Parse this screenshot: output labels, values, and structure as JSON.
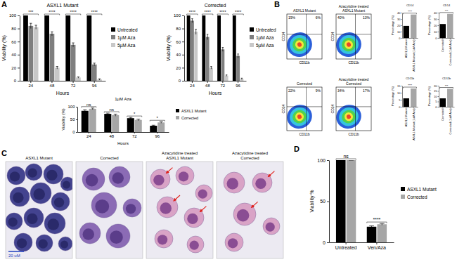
{
  "panel_labels": [
    "A",
    "B",
    "C",
    "D"
  ],
  "chart_data": [
    {
      "type": "bar",
      "title": "ASXL1 Mutant",
      "xlabel": "Hours",
      "ylabel": "Viability (%)",
      "categories": [
        "24",
        "48",
        "72",
        "96"
      ],
      "series": [
        {
          "name": "Untreated",
          "color": "#000000",
          "values": [
            100,
            100,
            100,
            100
          ],
          "errors": [
            0,
            0,
            0,
            0
          ]
        },
        {
          "name": "1µM Aza",
          "color": "#7f7f7f",
          "values": [
            84,
            72,
            55,
            25
          ],
          "errors": [
            4,
            3,
            3,
            2
          ]
        },
        {
          "name": "5µM Aza",
          "color": "#c8c8c8",
          "values": [
            82,
            20,
            5,
            2
          ],
          "errors": [
            3,
            2,
            1,
            1
          ]
        }
      ],
      "ylim": [
        0,
        100
      ],
      "yticks": [
        0,
        20,
        40,
        60,
        80,
        100
      ],
      "legend": "right",
      "annotations": [
        {
          "text": "***",
          "category": "24"
        },
        {
          "text": "****",
          "category": "48"
        },
        {
          "text": "****",
          "category": "72"
        },
        {
          "text": "****",
          "category": "96"
        }
      ]
    },
    {
      "type": "bar",
      "title": "Corrected",
      "xlabel": "Hours",
      "ylabel": "Viability (%)",
      "categories": [
        "24",
        "48",
        "72",
        "96"
      ],
      "series": [
        {
          "name": "Untreated",
          "color": "#000000",
          "values": [
            100,
            100,
            100,
            100
          ],
          "errors": [
            0,
            0,
            0,
            0
          ]
        },
        {
          "name": "1µM Aza",
          "color": "#7f7f7f",
          "values": [
            92,
            67,
            48,
            38
          ],
          "errors": [
            3,
            4,
            3,
            3
          ]
        },
        {
          "name": "5µM Aza",
          "color": "#c8c8c8",
          "values": [
            75,
            20,
            8,
            3
          ],
          "errors": [
            4,
            2,
            1,
            1
          ]
        }
      ],
      "ylim": [
        0,
        100
      ],
      "yticks": [
        0,
        20,
        40,
        60,
        80,
        100
      ],
      "legend": "right",
      "annotations": [
        {
          "text": "****",
          "category": "24"
        },
        {
          "text": "****",
          "category": "48"
        },
        {
          "text": "****",
          "category": "72"
        },
        {
          "text": "****",
          "category": "96"
        }
      ]
    },
    {
      "type": "bar",
      "title": "1µM Aza",
      "xlabel": "Hours",
      "ylabel": "Viability (%)",
      "categories": [
        "24",
        "48",
        "72",
        "96"
      ],
      "series": [
        {
          "name": "ASXL1 Mutant",
          "color": "#000000",
          "values": [
            84,
            72,
            55,
            25
          ],
          "errors": [
            4,
            3,
            3,
            2
          ]
        },
        {
          "name": "Corrected",
          "color": "#a6a6a6",
          "values": [
            92,
            67,
            48,
            38
          ],
          "errors": [
            3,
            4,
            3,
            3
          ]
        }
      ],
      "ylim": [
        0,
        100
      ],
      "yticks": [
        0,
        50,
        100
      ],
      "legend": "right",
      "annotations": [
        {
          "text": "ns",
          "category": "24"
        },
        {
          "text": "ns",
          "category": "48"
        },
        {
          "text": "*",
          "category": "72"
        },
        {
          "text": "*",
          "category": "96"
        }
      ]
    },
    {
      "type": "density",
      "title": [
        "ASXL1 Mutant"
      ],
      "xlabel": "CD11b",
      "ylabel": "CD14",
      "tick_labels": false,
      "annotations": [
        {
          "text": "19%",
          "position": "upper-left"
        },
        {
          "text": "6%",
          "position": "upper-right"
        }
      ]
    },
    {
      "type": "density",
      "title": [
        "Azacytidine treated",
        "ASXL1 Mutant"
      ],
      "xlabel": "CD11b",
      "ylabel": "CD14",
      "tick_labels": false,
      "annotations": [
        {
          "text": "40%",
          "position": "upper-left"
        },
        {
          "text": "13%",
          "position": "upper-right"
        }
      ]
    },
    {
      "type": "density",
      "title": [
        "Corrected"
      ],
      "xlabel": "CD11b",
      "ylabel": "CD14",
      "tick_labels": false,
      "annotations": [
        {
          "text": "22%",
          "position": "upper-left"
        },
        {
          "text": "9%",
          "position": "upper-right"
        }
      ]
    },
    {
      "type": "density",
      "title": [
        "Azacytidine treated",
        "Corrected"
      ],
      "xlabel": "CD11b",
      "ylabel": "CD14",
      "tick_labels": false,
      "annotations": [
        {
          "text": "34%",
          "position": "upper-left"
        },
        {
          "text": "17%",
          "position": "upper-right"
        }
      ]
    },
    {
      "type": "bar",
      "title": "CD14",
      "ylabel": "Percentage (%)",
      "categories": [
        "ASXL1 Mutant",
        "ASXL1 Mutant (1uM Aza)"
      ],
      "values": [
        19,
        37
      ],
      "colors": [
        "#000000",
        "#a6a6a6"
      ],
      "ylim": [
        0,
        40
      ],
      "yticks": [
        0,
        10,
        20,
        30,
        40
      ],
      "annotations": [
        {
          "text": "****"
        }
      ]
    },
    {
      "type": "bar",
      "title": "CD14",
      "ylabel": "Percentage (%)",
      "categories": [
        "Corrected",
        "Corrected (1uM Aza)"
      ],
      "values": [
        22,
        38
      ],
      "colors": [
        "#000000",
        "#a6a6a6"
      ],
      "ylim": [
        0,
        40
      ],
      "yticks": [
        0,
        10,
        20,
        30,
        40
      ],
      "annotations": [
        {
          "text": "***"
        }
      ]
    },
    {
      "type": "bar",
      "title": "CD11b",
      "ylabel": "Percentage (%)",
      "categories": [
        "ASXL1 Mutant",
        "ASXL1 Mutant (1uM Aza)"
      ],
      "values": [
        6,
        13
      ],
      "colors": [
        "#000000",
        "#a6a6a6"
      ],
      "ylim": [
        0,
        15
      ],
      "yticks": [
        0,
        5,
        10,
        15
      ],
      "annotations": [
        {
          "text": "****"
        }
      ]
    },
    {
      "type": "bar",
      "title": "CD11b",
      "ylabel": "Percentage (%)",
      "categories": [
        "Corrected",
        "Corrected (1uM Aza)"
      ],
      "values": [
        8,
        17
      ],
      "colors": [
        "#000000",
        "#a6a6a6"
      ],
      "ylim": [
        0,
        20
      ],
      "yticks": [
        0,
        5,
        10,
        15,
        20
      ],
      "annotations": [
        {
          "text": "***"
        }
      ]
    },
    {
      "type": "bar",
      "ylabel": "Viability %",
      "categories": [
        "Untreated",
        "Ven/Aza"
      ],
      "series": [
        {
          "name": "ASXL1 Mutant",
          "color": "#000000",
          "values": [
            100,
            19
          ],
          "errors": [
            0,
            1
          ]
        },
        {
          "name": "Corrected",
          "color": "#a6a6a6",
          "values": [
            100,
            22
          ],
          "errors": [
            0,
            1
          ]
        }
      ],
      "ylim": [
        0,
        100
      ],
      "yticks": [
        0,
        50,
        100
      ],
      "legend": "right",
      "annotations": [
        {
          "text": "ns",
          "category": "Untreated"
        },
        {
          "text": "****",
          "category": "Ven/Aza"
        }
      ]
    }
  ],
  "micrographs": {
    "titles": [
      [
        "ASXL1 Mutant"
      ],
      [
        "Corrected"
      ],
      [
        "Azacytidine treated",
        "ASXL1 Mutant"
      ],
      [
        "Azacytidine treated",
        "Corrected"
      ]
    ],
    "scale_bar": "20 uM"
  }
}
